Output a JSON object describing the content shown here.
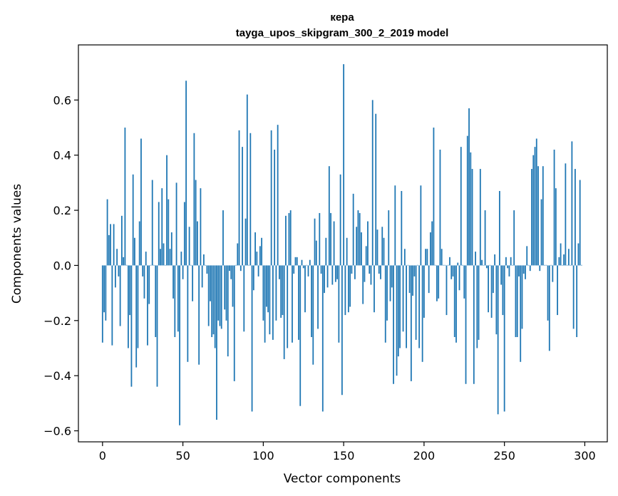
{
  "chart_data": {
    "type": "bar",
    "title": "кера",
    "subtitle": "tayga_upos_skipgram_300_2_2019 model",
    "xlabel": "Vector components",
    "ylabel": "Components values",
    "xlim": [
      -15,
      314
    ],
    "ylim": [
      -0.64,
      0.8
    ],
    "xticks": [
      0,
      50,
      100,
      150,
      200,
      250,
      300
    ],
    "yticks": [
      -0.6,
      -0.4,
      -0.2,
      0.0,
      0.2,
      0.4,
      0.6
    ],
    "ytick_labels": [
      "−0.6",
      "−0.4",
      "−0.2",
      "0.0",
      "0.2",
      "0.4",
      "0.6"
    ],
    "bar_color": "#1f77b4",
    "values": [
      -0.28,
      -0.17,
      -0.2,
      0.24,
      0.11,
      0.15,
      -0.29,
      0.15,
      -0.08,
      0.06,
      -0.04,
      -0.22,
      0.18,
      0.03,
      0.5,
      0.0,
      -0.3,
      -0.18,
      -0.44,
      0.33,
      0.1,
      -0.37,
      -0.3,
      0.16,
      0.46,
      -0.04,
      -0.12,
      0.05,
      -0.29,
      -0.14,
      0.0,
      0.31,
      0.0,
      -0.26,
      -0.44,
      0.23,
      0.06,
      0.28,
      0.08,
      0.0,
      0.4,
      0.24,
      0.06,
      0.12,
      -0.12,
      -0.26,
      0.3,
      -0.24,
      -0.58,
      0.05,
      -0.05,
      0.23,
      0.67,
      -0.35,
      0.14,
      0.0,
      -0.13,
      0.48,
      0.31,
      0.16,
      -0.36,
      0.28,
      -0.08,
      0.04,
      0.0,
      -0.03,
      -0.22,
      -0.13,
      -0.26,
      -0.25,
      -0.3,
      -0.56,
      -0.2,
      -0.22,
      -0.23,
      0.2,
      -0.16,
      -0.2,
      -0.33,
      -0.02,
      -0.05,
      -0.15,
      -0.42,
      0.0,
      0.08,
      0.49,
      -0.02,
      0.43,
      -0.24,
      0.17,
      0.62,
      0.0,
      0.48,
      -0.53,
      -0.09,
      0.12,
      0.05,
      -0.04,
      0.07,
      0.1,
      -0.2,
      -0.28,
      -0.15,
      -0.17,
      -0.25,
      0.49,
      -0.27,
      0.42,
      -0.2,
      0.51,
      -0.05,
      -0.19,
      -0.18,
      -0.34,
      0.18,
      -0.3,
      0.19,
      0.2,
      -0.28,
      -0.03,
      0.03,
      0.03,
      -0.27,
      -0.51,
      0.02,
      -0.01,
      -0.17,
      0.0,
      -0.04,
      0.02,
      -0.26,
      -0.36,
      0.17,
      0.09,
      -0.23,
      0.19,
      -0.03,
      -0.53,
      -0.1,
      0.1,
      -0.08,
      0.36,
      0.19,
      -0.07,
      0.16,
      -0.06,
      -0.05,
      -0.28,
      0.33,
      -0.47,
      0.73,
      -0.18,
      0.1,
      -0.17,
      -0.15,
      -0.03,
      0.26,
      -0.05,
      0.14,
      0.2,
      0.19,
      0.12,
      -0.14,
      -0.06,
      0.07,
      0.16,
      -0.03,
      -0.07,
      0.6,
      -0.17,
      0.55,
      0.13,
      -0.03,
      -0.05,
      0.14,
      0.1,
      -0.28,
      -0.2,
      0.2,
      -0.13,
      -0.08,
      -0.43,
      0.29,
      -0.4,
      -0.33,
      -0.3,
      0.27,
      -0.24,
      0.06,
      -0.3,
      0.0,
      -0.1,
      -0.42,
      -0.11,
      -0.04,
      -0.27,
      0.0,
      -0.3,
      0.29,
      -0.35,
      -0.19,
      0.06,
      0.06,
      -0.1,
      0.12,
      0.16,
      0.5,
      0.0,
      -0.13,
      -0.12,
      0.42,
      0.06,
      0.0,
      0.0,
      -0.18,
      0.0,
      0.03,
      -0.05,
      -0.04,
      -0.26,
      -0.28,
      0.01,
      -0.09,
      0.43,
      0.0,
      -0.12,
      -0.43,
      0.47,
      0.57,
      0.41,
      0.35,
      -0.43,
      0.05,
      -0.3,
      -0.27,
      0.35,
      0.02,
      0.0,
      0.2,
      -0.01,
      -0.17,
      0.0,
      -0.19,
      -0.1,
      0.04,
      -0.25,
      -0.54,
      0.27,
      -0.07,
      -0.18,
      -0.53,
      0.03,
      -0.01,
      -0.04,
      0.03,
      0.0,
      0.2,
      -0.26,
      -0.26,
      -0.04,
      -0.35,
      -0.23,
      -0.03,
      -0.05,
      0.07,
      0.0,
      -0.02,
      0.35,
      0.4,
      0.43,
      0.46,
      0.36,
      -0.02,
      0.24,
      0.36,
      0.0,
      0.0,
      -0.2,
      -0.31,
      0.0,
      -0.06,
      0.42,
      0.28,
      -0.18,
      0.03,
      0.08,
      0.0,
      0.04,
      0.37,
      0.0,
      0.06,
      0.0,
      0.45,
      -0.23,
      0.35,
      -0.26,
      0.08,
      0.31,
      0.0
    ],
    "source": {
      "values": [
        -0.28,
        -0.17,
        -0.2,
        0.24,
        0.11,
        0.15,
        -0.29,
        0.15,
        -0.08,
        0.06,
        -0.04,
        -0.22,
        0.18,
        0.03,
        0.5,
        0.0,
        -0.3,
        -0.18,
        -0.44,
        0.33,
        0.1,
        -0.37,
        -0.3,
        0.16,
        0.46,
        -0.04,
        -0.12,
        0.05,
        -0.29,
        -0.14,
        0.0,
        0.31,
        0.0,
        -0.26,
        -0.44,
        0.23,
        0.06,
        0.28,
        0.08,
        0.0,
        0.4,
        0.24,
        0.06,
        0.12,
        -0.12,
        -0.26,
        0.3,
        -0.24,
        -0.58,
        0.05,
        -0.05,
        0.23,
        0.67,
        -0.35,
        0.14,
        0.0,
        -0.13,
        0.48,
        0.31,
        0.16,
        -0.36,
        0.28,
        -0.08,
        0.04,
        0.0,
        -0.03,
        -0.22,
        -0.13,
        -0.26,
        -0.25,
        -0.3,
        -0.56,
        -0.2,
        -0.22,
        -0.23,
        0.2,
        -0.16,
        -0.2,
        -0.33,
        -0.02,
        -0.05,
        -0.15,
        -0.42,
        0.0,
        0.08,
        0.49,
        -0.02,
        0.43,
        -0.24,
        0.17,
        0.62,
        0.0,
        0.48,
        -0.53,
        -0.09,
        0.12,
        0.05,
        -0.04,
        0.07,
        0.1,
        -0.2,
        -0.28,
        -0.15,
        -0.17,
        -0.25,
        0.49,
        -0.27,
        0.42,
        -0.2,
        0.51,
        -0.05,
        -0.19,
        -0.18,
        -0.34,
        0.18,
        -0.3,
        0.19,
        0.2,
        -0.28,
        -0.03,
        0.03,
        0.03,
        -0.27,
        -0.51,
        0.02,
        -0.01,
        -0.17,
        0.0,
        -0.04,
        0.02,
        -0.26,
        -0.36,
        0.17,
        0.09,
        -0.23,
        0.19,
        -0.03,
        -0.53,
        -0.1,
        0.1,
        -0.08,
        0.36,
        0.19,
        -0.07,
        0.16,
        -0.06,
        -0.05,
        -0.28,
        0.33,
        -0.47,
        0.73,
        -0.18,
        0.1,
        -0.17,
        -0.15,
        -0.03,
        0.26,
        -0.05,
        0.14,
        0.2,
        0.19,
        0.12,
        -0.14,
        -0.06,
        0.07,
        0.16,
        -0.03,
        -0.07,
        0.6,
        -0.17,
        0.55,
        0.13,
        -0.03,
        -0.05,
        0.14,
        0.1,
        -0.28,
        -0.2,
        0.2,
        -0.13,
        -0.08,
        -0.43,
        0.29,
        -0.4,
        -0.33,
        -0.3,
        0.27,
        -0.24,
        0.06,
        -0.3,
        0.0,
        -0.1,
        -0.42,
        -0.11,
        -0.04,
        -0.27,
        0.0,
        -0.3,
        0.29,
        -0.35,
        -0.19,
        0.06,
        0.06,
        -0.1,
        0.12,
        0.16,
        0.5,
        0.0,
        -0.13,
        -0.12,
        0.42,
        0.06,
        0.0,
        0.0,
        -0.18,
        0.0,
        0.03,
        -0.05,
        -0.04,
        -0.26,
        -0.28,
        0.01,
        -0.09,
        0.43,
        0.0,
        -0.12,
        -0.43,
        0.47,
        0.57,
        0.41,
        0.35,
        -0.43,
        0.05,
        -0.3,
        -0.27,
        0.35,
        0.02,
        0.0,
        0.2,
        -0.01,
        -0.17,
        0.0,
        -0.19,
        -0.1,
        0.04,
        -0.25,
        -0.54,
        0.27,
        -0.07,
        -0.18,
        -0.53,
        0.03,
        -0.01,
        -0.04,
        0.03,
        0.0,
        0.2,
        -0.26,
        -0.26,
        -0.04,
        -0.35,
        -0.23,
        -0.03,
        -0.05,
        0.07,
        0.0,
        -0.02,
        0.35,
        0.4,
        0.43,
        0.46,
        0.36,
        -0.02,
        0.24,
        0.36,
        0.0,
        0.0,
        -0.2,
        -0.31,
        0.0,
        -0.06,
        0.42,
        0.28,
        -0.18,
        0.03,
        0.08,
        0.0,
        0.04,
        0.37,
        0.0,
        0.06,
        0.0,
        0.45,
        -0.23,
        0.35,
        -0.26,
        0.08,
        0.31,
        0.0
      ]
    }
  }
}
